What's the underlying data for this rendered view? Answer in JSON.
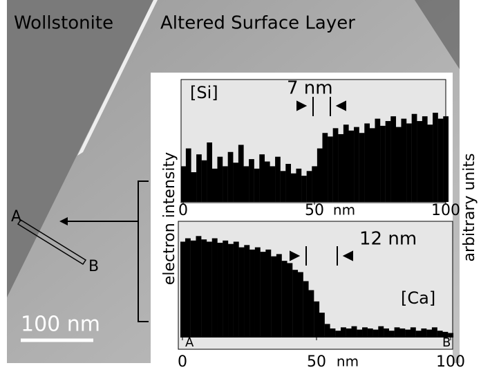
{
  "image": {
    "left_label": "Wollstonite",
    "right_label": "Altered Surface Layer",
    "scale_bar": "100 nm",
    "point_a": "A",
    "point_b": "B"
  },
  "y_label": "electron intensity",
  "units_label": "arbitrary units",
  "chart_data": [
    {
      "type": "bar",
      "label": "[Si]",
      "annotation": "7 nm",
      "color": "#000000",
      "xlim": [
        0,
        100
      ],
      "ylim": [
        0,
        100
      ],
      "xticks": [
        0,
        50,
        100
      ],
      "x_label": "nm",
      "x": [
        0,
        2,
        4,
        6,
        8,
        10,
        12,
        14,
        16,
        18,
        20,
        22,
        24,
        26,
        28,
        30,
        32,
        34,
        36,
        38,
        40,
        42,
        44,
        46,
        48,
        50,
        52,
        54,
        56,
        58,
        60,
        62,
        64,
        66,
        68,
        70,
        72,
        74,
        76,
        78,
        80,
        82,
        84,
        86,
        88,
        90,
        92,
        94,
        96,
        98,
        100
      ],
      "values": [
        30,
        45,
        25,
        40,
        35,
        50,
        28,
        38,
        30,
        42,
        33,
        48,
        30,
        36,
        28,
        40,
        34,
        30,
        38,
        26,
        32,
        24,
        28,
        22,
        26,
        30,
        45,
        58,
        55,
        62,
        57,
        65,
        60,
        63,
        58,
        66,
        62,
        70,
        64,
        68,
        72,
        63,
        70,
        66,
        74,
        68,
        72,
        65,
        75,
        70,
        72
      ]
    },
    {
      "type": "bar",
      "label": "[Ca]",
      "annotation": "12 nm",
      "color": "#000000",
      "start_label": "A",
      "end_label": "B",
      "xlim": [
        0,
        100
      ],
      "ylim": [
        0,
        100
      ],
      "xticks": [
        0,
        50,
        100
      ],
      "x_label": "nm",
      "x": [
        0,
        2,
        4,
        6,
        8,
        10,
        12,
        14,
        16,
        18,
        20,
        22,
        24,
        26,
        28,
        30,
        32,
        34,
        36,
        38,
        40,
        42,
        44,
        46,
        48,
        50,
        52,
        54,
        56,
        58,
        60,
        62,
        64,
        66,
        68,
        70,
        72,
        74,
        76,
        78,
        80,
        82,
        84,
        86,
        88,
        90,
        92,
        94,
        96,
        98,
        100
      ],
      "values": [
        85,
        88,
        86,
        90,
        87,
        85,
        88,
        84,
        86,
        83,
        85,
        80,
        82,
        78,
        80,
        76,
        78,
        72,
        74,
        68,
        66,
        60,
        58,
        50,
        42,
        32,
        22,
        12,
        8,
        6,
        9,
        8,
        10,
        7,
        9,
        8,
        7,
        10,
        8,
        6,
        9,
        8,
        7,
        9,
        6,
        8,
        7,
        9,
        6,
        5,
        4
      ]
    }
  ]
}
